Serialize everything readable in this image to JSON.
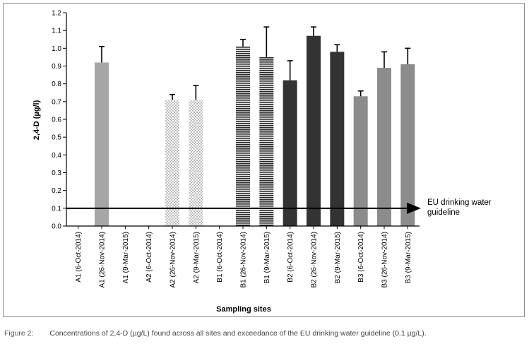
{
  "chart_data": {
    "type": "bar",
    "ylabel": "2,4-D (µg/l)",
    "xlabel": "Sampling sites",
    "ylim": [
      0,
      1.2
    ],
    "yticks": [
      "0.0",
      "0.1",
      "0.2",
      "0.3",
      "0.4",
      "0.5",
      "0.6",
      "0.7",
      "0.8",
      "0.9",
      "1.0",
      "1.1",
      "1.2"
    ],
    "categories": [
      "A1 (6-Oct-2014)",
      "A1 (26-Nov-2014)",
      "A1 (9-Mar-2015)",
      "A2 (6-Oct-2014)",
      "A2 (26-Nov-2014)",
      "A2 (9-Mar-2015)",
      "B1 (6-Oct-2014)",
      "B1 (26-Nov-2014)",
      "B1 (9-Mar-2015)",
      "B2 (6-Oct-2014)",
      "B2 (26-Nov-2014)",
      "B2 (9-Mar-2015)",
      "B3 (6-Oct-2014)",
      "B3 (26-Nov-2014)",
      "B3 (9-Mar-2015)"
    ],
    "values": [
      0,
      0.92,
      0,
      0,
      0.71,
      0.71,
      0,
      1.01,
      0.95,
      0.82,
      1.07,
      0.98,
      0.73,
      0.89,
      0.91
    ],
    "errors": [
      0,
      0.09,
      0,
      0,
      0.03,
      0.08,
      0,
      0.04,
      0.17,
      0.11,
      0.05,
      0.04,
      0.03,
      0.09,
      0.09
    ],
    "fills": [
      "gray",
      "gray",
      "gray",
      "checker",
      "checker",
      "checker",
      "striped",
      "striped",
      "striped",
      "dark",
      "dark",
      "dark",
      "mid",
      "mid",
      "mid"
    ],
    "colors": {
      "gray": "#a6a6a6",
      "dark": "#333333",
      "mid": "#8c8c8c",
      "stripe": "#2b2b2b",
      "checker": "#bdbdbd"
    },
    "guideline": {
      "value": 0.1,
      "label_line1": "EU drinking water",
      "label_line2": "guideline"
    },
    "grid": false
  },
  "caption": {
    "label": "Figure 2:",
    "text": "Concentrations of 2,4-D (µg/L) found across all sites and exceedance of the EU drinking water guideline (0.1 µg/L)."
  }
}
